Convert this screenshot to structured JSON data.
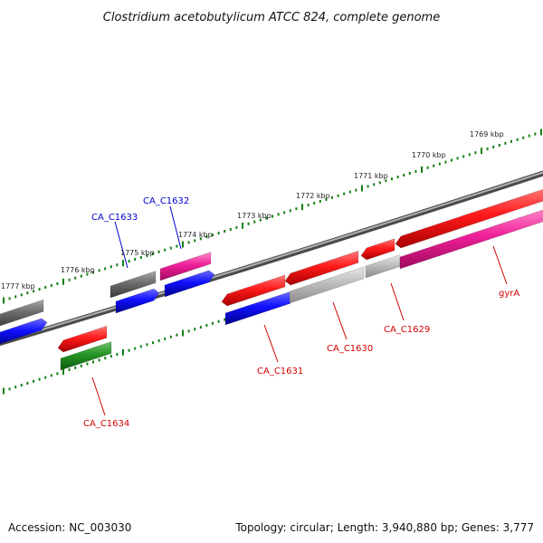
{
  "title": "Clostridium acetobutylicum ATCC 824, complete genome",
  "accession": "Accession: NC_003030",
  "summary": "Topology: circular; Length: 3,940,880 bp; Genes: 3,777",
  "ticks": [
    "1777 kbp",
    "1776 kbp",
    "1775 kbp",
    "1774 kbp",
    "1773 kbp",
    "1772 kbp",
    "1771 kbp",
    "1770 kbp",
    "1769 kbp"
  ],
  "colors": {
    "red": "#e80000",
    "blue": "#0000e6",
    "pink": "#e6188c",
    "gray": "#666666",
    "lightgray": "#b4b4b4",
    "green": "#1e8c1e",
    "label_red": "#d40000",
    "label_blue": "#0000cc",
    "backbone": "#777777",
    "tick": "#128012"
  },
  "gene_labels": [
    {
      "name": "CA_C1632",
      "color": "blue"
    },
    {
      "name": "CA_C1633",
      "color": "blue"
    },
    {
      "name": "CA_C1634",
      "color": "red"
    },
    {
      "name": "CA_C1631",
      "color": "red"
    },
    {
      "name": "CA_C1630",
      "color": "red"
    },
    {
      "name": "CA_C1629",
      "color": "red"
    },
    {
      "name": "gyrA",
      "color": "red"
    }
  ]
}
